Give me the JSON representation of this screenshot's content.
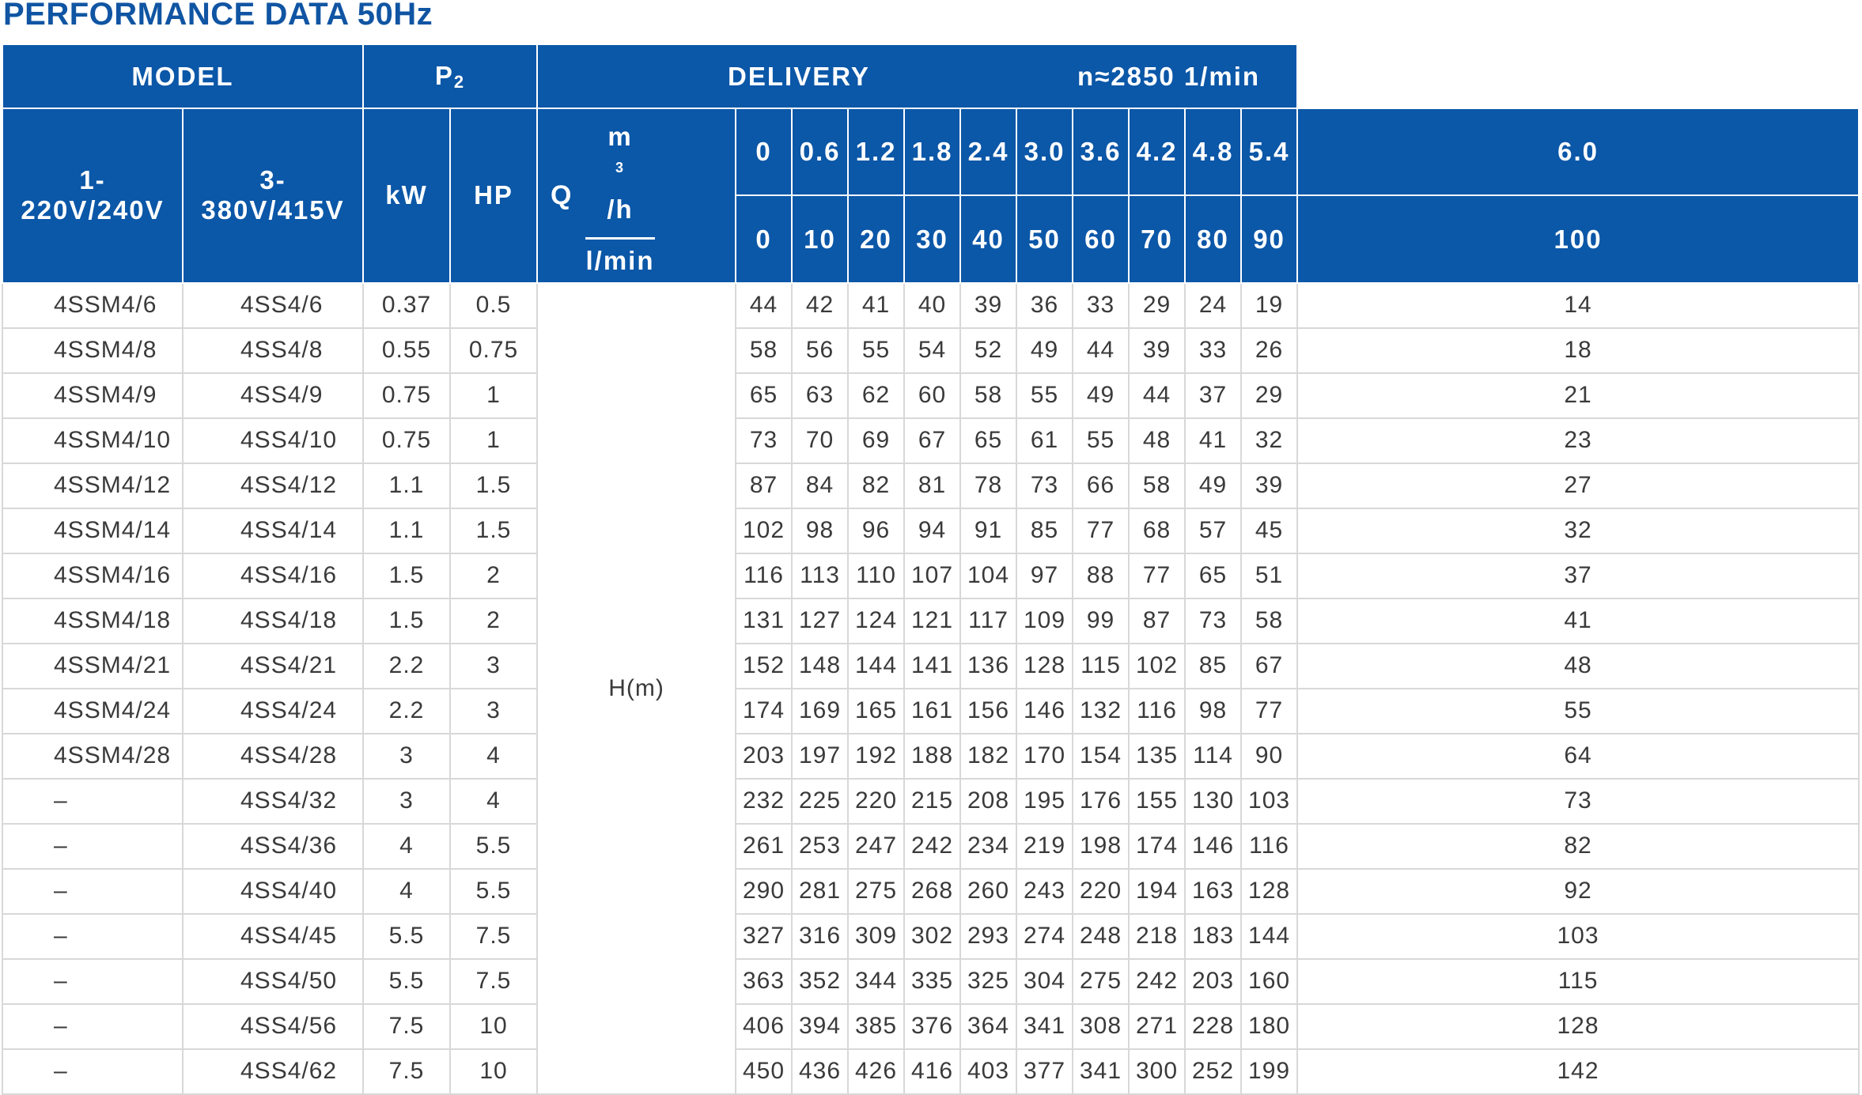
{
  "title": "PERFORMANCE DATA 50Hz",
  "header": {
    "model": "MODEL",
    "p2_main": "P",
    "p2_sub": "2",
    "delivery": "DELIVERY",
    "speed": "n≈2850  1/min",
    "col_1ph_line1": "1-",
    "col_1ph_line2": "220V/240V",
    "col_3ph_line1": "3-",
    "col_3ph_line2": "380V/415V",
    "kw": "kW",
    "hp": "HP",
    "q": "Q",
    "unit_m3h_base": "m",
    "unit_m3h_sup": "3",
    "unit_m3h_tail": "/h",
    "unit_lmin": "l/min",
    "head_label": "H(m)"
  },
  "flow_m3h": [
    "0",
    "0.6",
    "1.2",
    "1.8",
    "2.4",
    "3.0",
    "3.6",
    "4.2",
    "4.8",
    "5.4",
    "6.0"
  ],
  "flow_lmin": [
    "0",
    "10",
    "20",
    "30",
    "40",
    "50",
    "60",
    "70",
    "80",
    "90",
    "100"
  ],
  "rows": [
    {
      "m1": "4SSM4/6",
      "m3": "4SS4/6",
      "kw": "0.37",
      "hp": "0.5",
      "h": [
        "44",
        "42",
        "41",
        "40",
        "39",
        "36",
        "33",
        "29",
        "24",
        "19",
        "14"
      ]
    },
    {
      "m1": "4SSM4/8",
      "m3": "4SS4/8",
      "kw": "0.55",
      "hp": "0.75",
      "h": [
        "58",
        "56",
        "55",
        "54",
        "52",
        "49",
        "44",
        "39",
        "33",
        "26",
        "18"
      ]
    },
    {
      "m1": "4SSM4/9",
      "m3": "4SS4/9",
      "kw": "0.75",
      "hp": "1",
      "h": [
        "65",
        "63",
        "62",
        "60",
        "58",
        "55",
        "49",
        "44",
        "37",
        "29",
        "21"
      ]
    },
    {
      "m1": "4SSM4/10",
      "m3": "4SS4/10",
      "kw": "0.75",
      "hp": "1",
      "h": [
        "73",
        "70",
        "69",
        "67",
        "65",
        "61",
        "55",
        "48",
        "41",
        "32",
        "23"
      ]
    },
    {
      "m1": "4SSM4/12",
      "m3": "4SS4/12",
      "kw": "1.1",
      "hp": "1.5",
      "h": [
        "87",
        "84",
        "82",
        "81",
        "78",
        "73",
        "66",
        "58",
        "49",
        "39",
        "27"
      ]
    },
    {
      "m1": "4SSM4/14",
      "m3": "4SS4/14",
      "kw": "1.1",
      "hp": "1.5",
      "h": [
        "102",
        "98",
        "96",
        "94",
        "91",
        "85",
        "77",
        "68",
        "57",
        "45",
        "32"
      ]
    },
    {
      "m1": "4SSM4/16",
      "m3": "4SS4/16",
      "kw": "1.5",
      "hp": "2",
      "h": [
        "116",
        "113",
        "110",
        "107",
        "104",
        "97",
        "88",
        "77",
        "65",
        "51",
        "37"
      ]
    },
    {
      "m1": "4SSM4/18",
      "m3": "4SS4/18",
      "kw": "1.5",
      "hp": "2",
      "h": [
        "131",
        "127",
        "124",
        "121",
        "117",
        "109",
        "99",
        "87",
        "73",
        "58",
        "41"
      ]
    },
    {
      "m1": "4SSM4/21",
      "m3": "4SS4/21",
      "kw": "2.2",
      "hp": "3",
      "h": [
        "152",
        "148",
        "144",
        "141",
        "136",
        "128",
        "115",
        "102",
        "85",
        "67",
        "48"
      ]
    },
    {
      "m1": "4SSM4/24",
      "m3": "4SS4/24",
      "kw": "2.2",
      "hp": "3",
      "h": [
        "174",
        "169",
        "165",
        "161",
        "156",
        "146",
        "132",
        "116",
        "98",
        "77",
        "55"
      ]
    },
    {
      "m1": "4SSM4/28",
      "m3": "4SS4/28",
      "kw": "3",
      "hp": "4",
      "h": [
        "203",
        "197",
        "192",
        "188",
        "182",
        "170",
        "154",
        "135",
        "114",
        "90",
        "64"
      ]
    },
    {
      "m1": "–",
      "m3": "4SS4/32",
      "kw": "3",
      "hp": "4",
      "h": [
        "232",
        "225",
        "220",
        "215",
        "208",
        "195",
        "176",
        "155",
        "130",
        "103",
        "73"
      ]
    },
    {
      "m1": "–",
      "m3": "4SS4/36",
      "kw": "4",
      "hp": "5.5",
      "h": [
        "261",
        "253",
        "247",
        "242",
        "234",
        "219",
        "198",
        "174",
        "146",
        "116",
        "82"
      ]
    },
    {
      "m1": "–",
      "m3": "4SS4/40",
      "kw": "4",
      "hp": "5.5",
      "h": [
        "290",
        "281",
        "275",
        "268",
        "260",
        "243",
        "220",
        "194",
        "163",
        "128",
        "92"
      ]
    },
    {
      "m1": "–",
      "m3": "4SS4/45",
      "kw": "5.5",
      "hp": "7.5",
      "h": [
        "327",
        "316",
        "309",
        "302",
        "293",
        "274",
        "248",
        "218",
        "183",
        "144",
        "103"
      ]
    },
    {
      "m1": "–",
      "m3": "4SS4/50",
      "kw": "5.5",
      "hp": "7.5",
      "h": [
        "363",
        "352",
        "344",
        "335",
        "325",
        "304",
        "275",
        "242",
        "203",
        "160",
        "115"
      ]
    },
    {
      "m1": "–",
      "m3": "4SS4/56",
      "kw": "7.5",
      "hp": "10",
      "h": [
        "406",
        "394",
        "385",
        "376",
        "364",
        "341",
        "308",
        "271",
        "228",
        "180",
        "128"
      ]
    },
    {
      "m1": "–",
      "m3": "4SS4/62",
      "kw": "7.5",
      "hp": "10",
      "h": [
        "450",
        "436",
        "426",
        "416",
        "403",
        "377",
        "341",
        "300",
        "252",
        "199",
        "142"
      ]
    }
  ]
}
